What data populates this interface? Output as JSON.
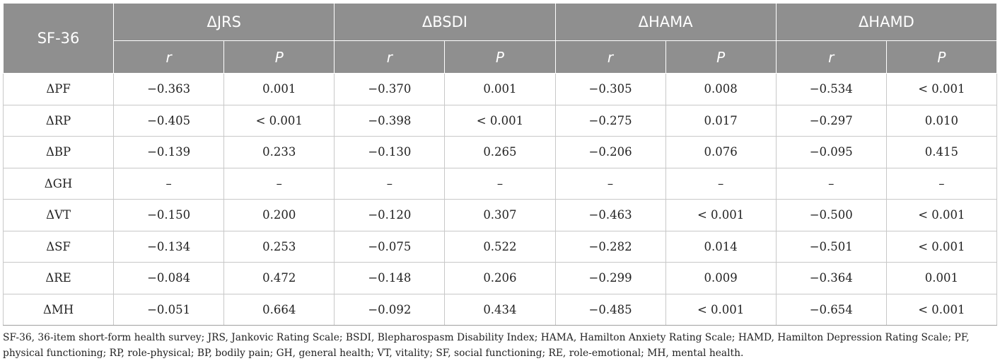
{
  "table": {
    "corner": "SF-36",
    "groups": [
      "ΔJRS",
      "ΔBSDI",
      "ΔHAMA",
      "ΔHAMD"
    ],
    "subheaders": [
      "r",
      "P"
    ],
    "rows": [
      {
        "label": "ΔPF",
        "cells": [
          "−0.363",
          "0.001",
          "−0.370",
          "0.001",
          "−0.305",
          "0.008",
          "−0.534",
          "< 0.001"
        ]
      },
      {
        "label": "ΔRP",
        "cells": [
          "−0.405",
          "< 0.001",
          "−0.398",
          "< 0.001",
          "−0.275",
          "0.017",
          "−0.297",
          "0.010"
        ]
      },
      {
        "label": "ΔBP",
        "cells": [
          "−0.139",
          "0.233",
          "−0.130",
          "0.265",
          "−0.206",
          "0.076",
          "−0.095",
          "0.415"
        ]
      },
      {
        "label": "ΔGH",
        "cells": [
          "–",
          "–",
          "–",
          "–",
          "–",
          "–",
          "–",
          "–"
        ]
      },
      {
        "label": "ΔVT",
        "cells": [
          "−0.150",
          "0.200",
          "−0.120",
          "0.307",
          "−0.463",
          "< 0.001",
          "−0.500",
          "< 0.001"
        ]
      },
      {
        "label": "ΔSF",
        "cells": [
          "−0.134",
          "0.253",
          "−0.075",
          "0.522",
          "−0.282",
          "0.014",
          "−0.501",
          "< 0.001"
        ]
      },
      {
        "label": "ΔRE",
        "cells": [
          "−0.084",
          "0.472",
          "−0.148",
          "0.206",
          "−0.299",
          "0.009",
          "−0.364",
          "0.001"
        ]
      },
      {
        "label": "ΔMH",
        "cells": [
          "−0.051",
          "0.664",
          "−0.092",
          "0.434",
          "−0.485",
          "< 0.001",
          "−0.654",
          "< 0.001"
        ]
      }
    ]
  },
  "footnote": "SF-36, 36-item short-form health survey; JRS, Jankovic Rating Scale; BSDI, Blepharospasm Disability Index; HAMA, Hamilton Anxiety Rating Scale; HAMD, Hamilton Depression Rating Scale; PF, physical functioning; RP, role-physical; BP, bodily pain; GH, general health; VT, vitality; SF, social functioning; RE, role-emotional; MH, mental health."
}
